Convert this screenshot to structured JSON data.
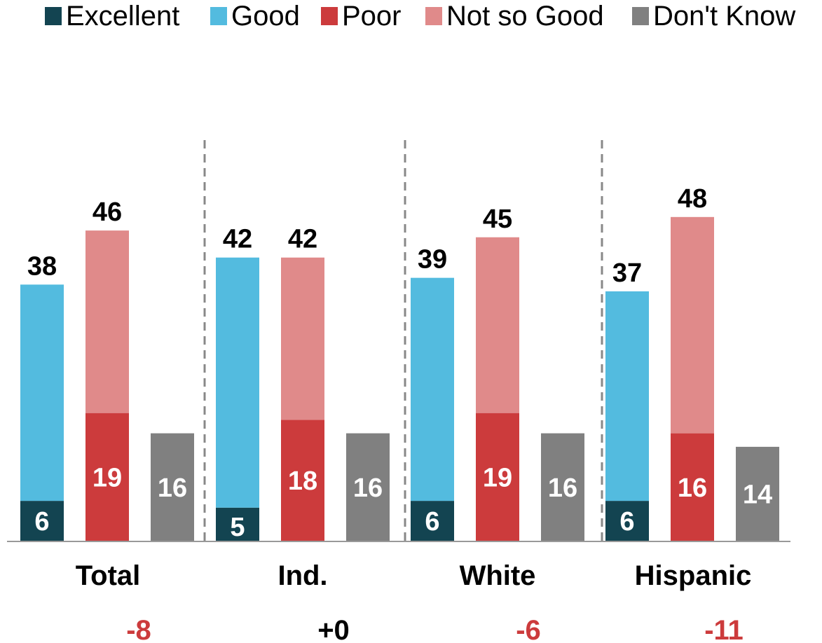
{
  "chart_data": {
    "type": "bar",
    "categories": [
      "Total",
      "Ind.",
      "White",
      "Hispanic"
    ],
    "differences": [
      "-8",
      "+0",
      "-6",
      "-11"
    ],
    "difference_colors": [
      "#CC3B3C",
      "#000000",
      "#CC3B3C",
      "#CC3B3C"
    ],
    "legend_position": "top",
    "legend": [
      {
        "name": "Excellent",
        "color": "#134451"
      },
      {
        "name": "Good",
        "color": "#53BBDF"
      },
      {
        "name": "Poor",
        "color": "#CC3B3C"
      },
      {
        "name": "Not so Good",
        "color": "#E08A8A"
      },
      {
        "name": "Don't Know",
        "color": "#808080"
      }
    ],
    "series": [
      {
        "name": "Excellent",
        "stack": "positive",
        "values": [
          6,
          5,
          6,
          6
        ]
      },
      {
        "name": "Good",
        "stack": "positive",
        "values": [
          32,
          37,
          33,
          31
        ]
      },
      {
        "name": "Poor",
        "stack": "negative",
        "values": [
          19,
          18,
          19,
          16
        ]
      },
      {
        "name": "Not so Good",
        "stack": "negative",
        "values": [
          27,
          24,
          26,
          32
        ]
      },
      {
        "name": "Don't Know",
        "stack": "dontknow",
        "values": [
          16,
          16,
          16,
          14
        ]
      }
    ],
    "totals": {
      "positive": [
        38,
        42,
        39,
        37
      ],
      "negative": [
        46,
        42,
        45,
        48
      ]
    },
    "separators": "dashed",
    "ylim": [
      0,
      50
    ]
  }
}
